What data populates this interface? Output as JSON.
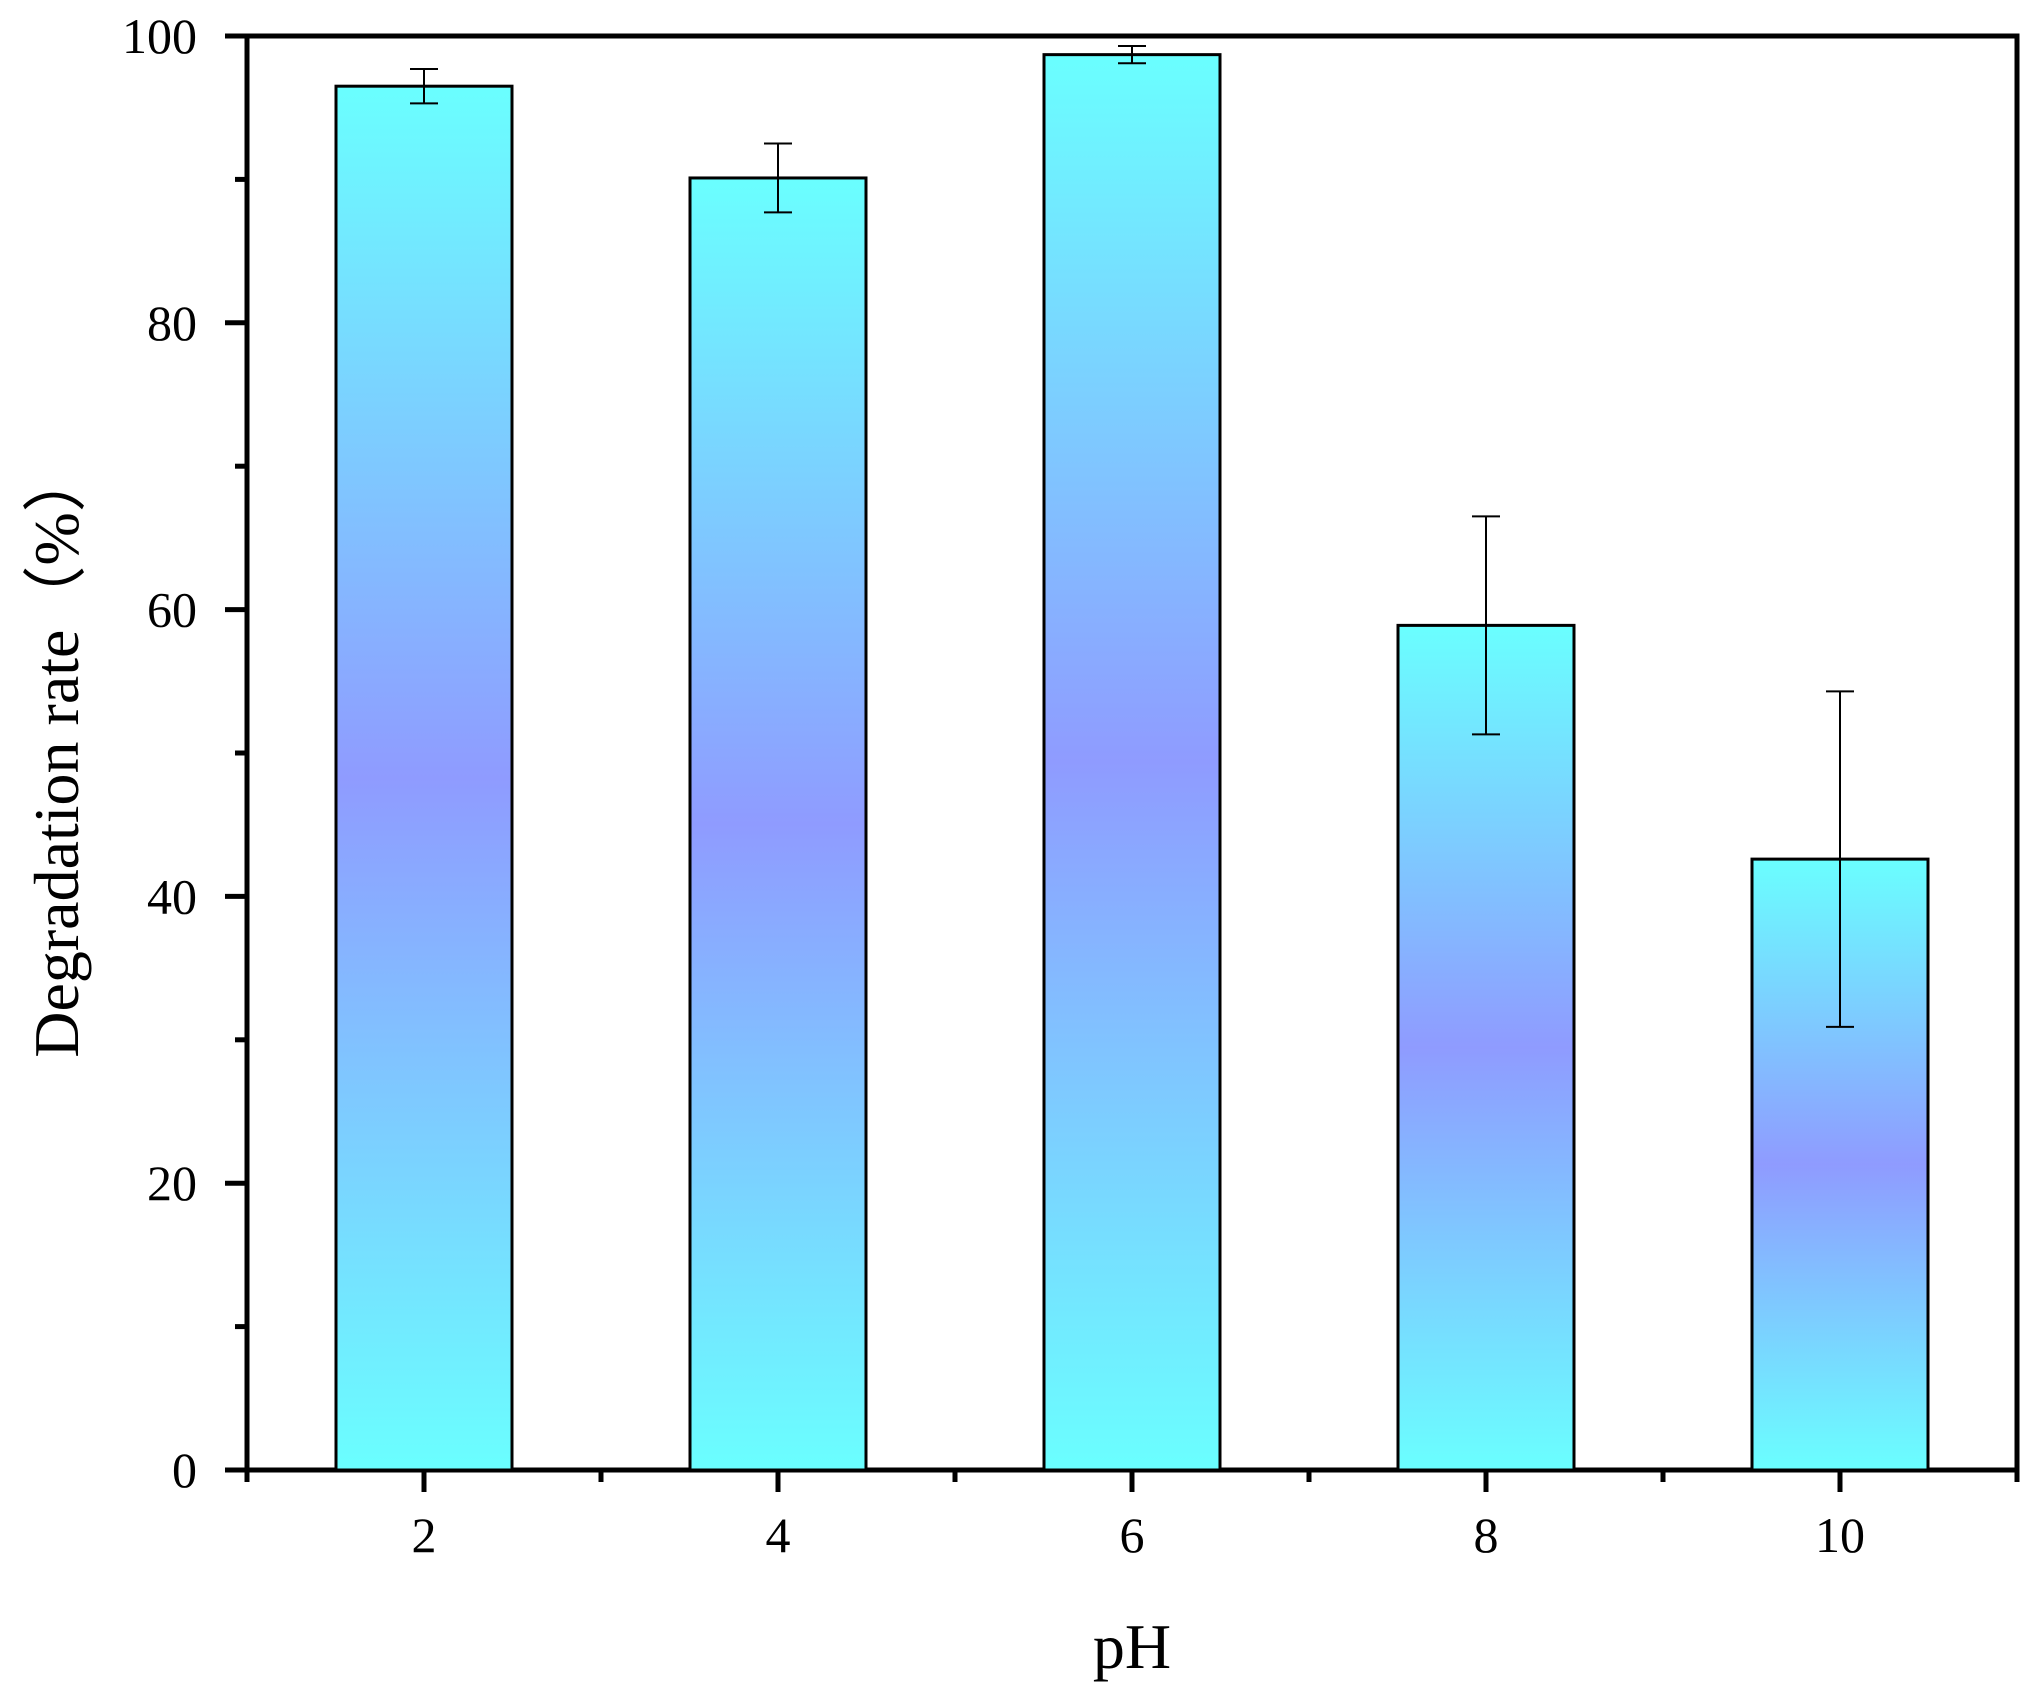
{
  "chart_data": {
    "type": "bar",
    "xlabel": "pH",
    "ylabel": "Degradation rate（%）",
    "categories": [
      "2",
      "4",
      "6",
      "8",
      "10"
    ],
    "values": [
      96.5,
      90.1,
      98.7,
      58.9,
      42.6
    ],
    "errors": [
      1.2,
      2.4,
      0.6,
      7.6,
      11.7
    ],
    "ylim": [
      0,
      100
    ],
    "yticks": [
      0,
      20,
      40,
      60,
      80,
      100
    ],
    "yticks_minor": [
      10,
      30,
      50,
      70,
      90
    ],
    "grid": false,
    "legend": "none",
    "colors": {
      "bar_edge": "#6affff",
      "bar_middle": "#8f9bff",
      "bar_stroke": "#000000",
      "axis": "#000000"
    }
  }
}
